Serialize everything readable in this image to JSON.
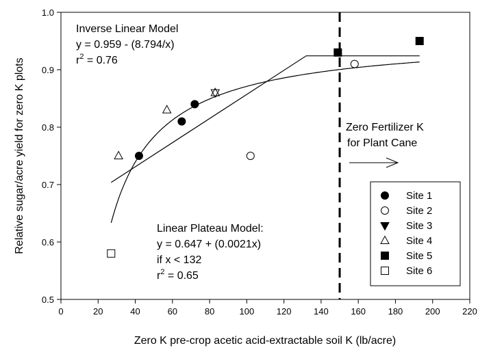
{
  "chart_data": {
    "type": "scatter",
    "xlabel": "Zero K pre-crop acetic acid-extractable soil K (lb/acre)",
    "ylabel": "Relative sugar/acre yield for zero K plots",
    "xlim": [
      0,
      220
    ],
    "ylim": [
      0.5,
      1.0
    ],
    "x_ticks": [
      0,
      20,
      40,
      60,
      80,
      100,
      120,
      140,
      160,
      180,
      200,
      220
    ],
    "y_ticks": [
      0.5,
      0.6,
      0.7,
      0.8,
      0.9,
      1.0
    ],
    "grid": false,
    "legend_position": "bottom-right",
    "series": [
      {
        "name": "Site 1",
        "marker": "filled-circle",
        "points": [
          [
            42,
            0.75
          ],
          [
            65,
            0.81
          ],
          [
            72,
            0.84
          ]
        ]
      },
      {
        "name": "Site 2",
        "marker": "open-circle",
        "points": [
          [
            102,
            0.75
          ],
          [
            158,
            0.91
          ]
        ]
      },
      {
        "name": "Site 3",
        "marker": "filled-triangle-down",
        "points": [
          [
            83,
            0.86
          ]
        ]
      },
      {
        "name": "Site 4",
        "marker": "open-triangle-up",
        "points": [
          [
            31,
            0.75
          ],
          [
            57,
            0.83
          ],
          [
            83,
            0.86
          ]
        ]
      },
      {
        "name": "Site 5",
        "marker": "filled-square",
        "points": [
          [
            149,
            0.93
          ],
          [
            193,
            0.95
          ]
        ]
      },
      {
        "name": "Site 6",
        "marker": "open-square",
        "points": [
          [
            27,
            0.58
          ]
        ]
      }
    ],
    "models": {
      "inverse_linear": {
        "intercept": 0.959,
        "coef": -8.794,
        "x_range": [
          27,
          193
        ]
      },
      "linear_plateau": {
        "intercept": 0.647,
        "slope": 0.0021,
        "join": 132,
        "x_range": [
          27,
          193
        ]
      }
    },
    "threshold_x": 150,
    "annotations": {
      "inverse_title": "Inverse Linear Model",
      "inverse_eq": "y = 0.959 - (8.794/x)",
      "inverse_r2_prefix": "r",
      "inverse_r2_sup": "2",
      "inverse_r2_value": " = 0.76",
      "plateau_title": "Linear Plateau Model:",
      "plateau_eq": "y = 0.647 + (0.0021x)",
      "plateau_cond": "if x < 132",
      "plateau_r2_prefix": "r",
      "plateau_r2_sup": "2",
      "plateau_r2_value": " = 0.65",
      "zero_k_line1": "Zero Fertilizer K",
      "zero_k_line2": "for Plant Cane"
    }
  }
}
